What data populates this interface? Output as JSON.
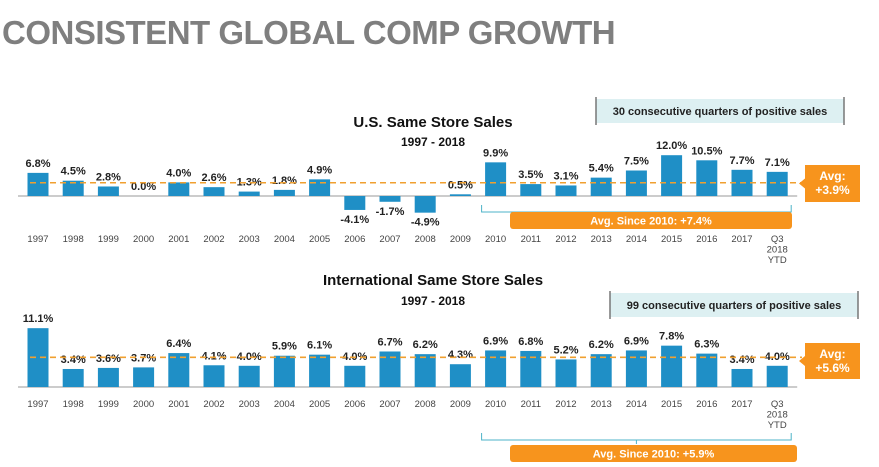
{
  "slide": {
    "title": "CONSISTENT GLOBAL COMP GROWTH"
  },
  "colors": {
    "bar": "#1f8fc6",
    "avg_line": "#f0a030",
    "orange": "#f7941d",
    "callout_bg": "#ddf0f2",
    "bracket": "#4db3c8"
  },
  "chart_data": [
    {
      "type": "bar",
      "title": "U.S. Same Store Sales",
      "subtitle": "1997 - 2018",
      "categories": [
        "1997",
        "1998",
        "1999",
        "2000",
        "2001",
        "2002",
        "2003",
        "2004",
        "2005",
        "2006",
        "2007",
        "2008",
        "2009",
        "2010",
        "2011",
        "2012",
        "2013",
        "2014",
        "2015",
        "2016",
        "2017",
        "Q3\n2018\nYTD"
      ],
      "values": [
        6.8,
        4.5,
        2.8,
        0.0,
        4.0,
        2.6,
        1.3,
        1.8,
        4.9,
        -4.1,
        -1.7,
        -4.9,
        0.5,
        9.9,
        3.5,
        3.1,
        5.4,
        7.5,
        12.0,
        10.5,
        7.7,
        7.1
      ],
      "labels": [
        "6.8%",
        "4.5%",
        "2.8%",
        "0.0%",
        "4.0%",
        "2.6%",
        "1.3%",
        "1.8%",
        "4.9%",
        "-4.1%",
        "-1.7%",
        "-4.9%",
        "0.5%",
        "9.9%",
        "3.5%",
        "3.1%",
        "5.4%",
        "7.5%",
        "12.0%",
        "10.5%",
        "7.7%",
        "7.1%"
      ],
      "average": 3.9,
      "average_label": [
        "Avg:",
        "+3.9%"
      ],
      "callout": "30 consecutive quarters of positive sales",
      "since_2010": "Avg. Since 2010: +7.4%"
    },
    {
      "type": "bar",
      "title": "International Same Store Sales",
      "subtitle": "1997 - 2018",
      "categories": [
        "1997",
        "1998",
        "1999",
        "2000",
        "2001",
        "2002",
        "2003",
        "2004",
        "2005",
        "2006",
        "2007",
        "2008",
        "2009",
        "2010",
        "2011",
        "2012",
        "2013",
        "2014",
        "2015",
        "2016",
        "2017",
        "Q3\n2018\nYTD"
      ],
      "values": [
        11.1,
        3.4,
        3.6,
        3.7,
        6.4,
        4.1,
        4.0,
        5.9,
        6.1,
        4.0,
        6.7,
        6.2,
        4.3,
        6.9,
        6.8,
        5.2,
        6.2,
        6.9,
        7.8,
        6.3,
        3.4,
        4.0
      ],
      "labels": [
        "11.1%",
        "3.4%",
        "3.6%",
        "3.7%",
        "6.4%",
        "4.1%",
        "4.0%",
        "5.9%",
        "6.1%",
        "4.0%",
        "6.7%",
        "6.2%",
        "4.3%",
        "6.9%",
        "6.8%",
        "5.2%",
        "6.2%",
        "6.9%",
        "7.8%",
        "6.3%",
        "3.4%",
        "4.0%"
      ],
      "average": 5.6,
      "average_label": [
        "Avg:",
        "+5.6%"
      ],
      "callout": "99 consecutive quarters of positive sales",
      "since_2010": "Avg. Since 2010: +5.9%"
    }
  ]
}
